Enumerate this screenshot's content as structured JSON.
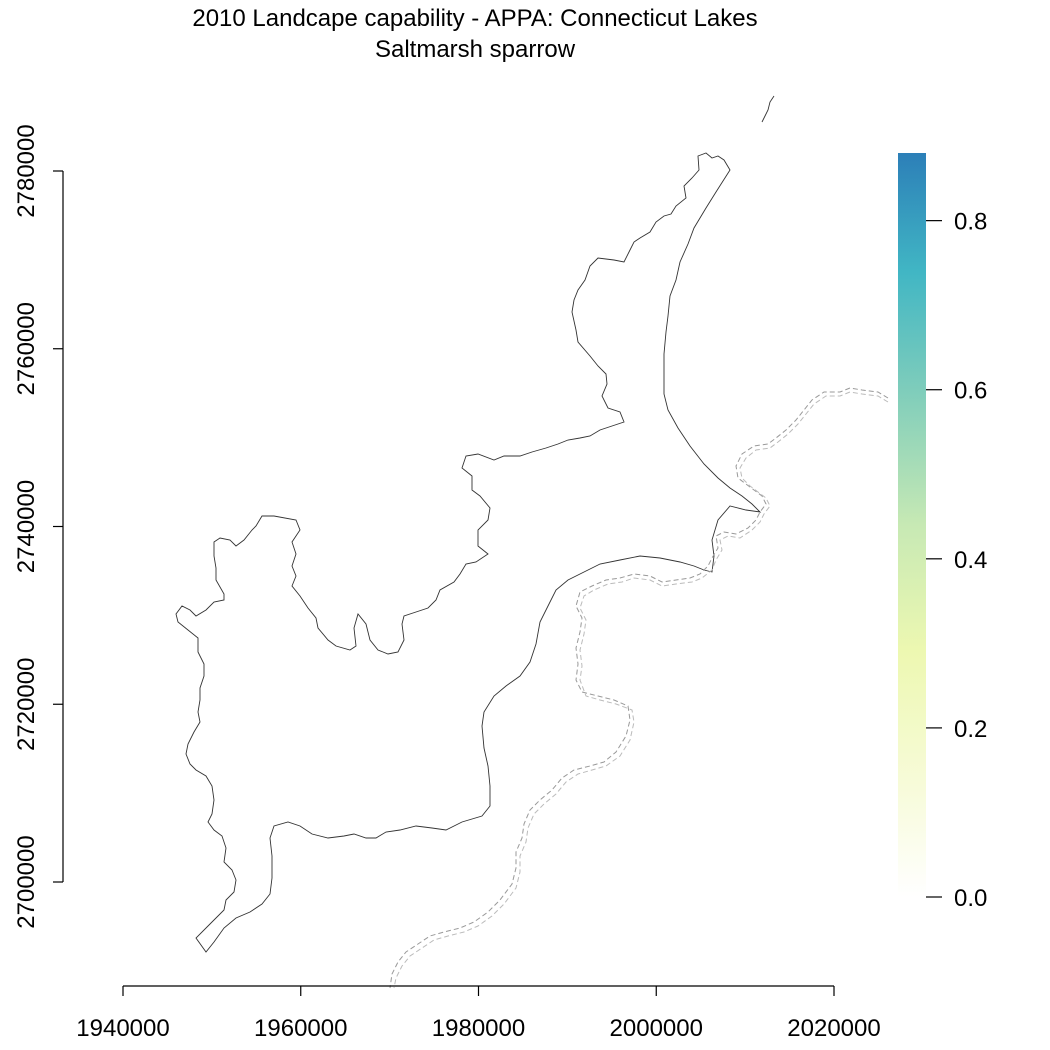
{
  "title": {
    "line1": "2010 Landcape capability - APPA: Connecticut Lakes",
    "line2": "Saltmarsh sparrow"
  },
  "chart_data": {
    "type": "heatmap",
    "title": "2010 Landcape capability - APPA: Connecticut Lakes",
    "subtitle": "Saltmarsh sparrow",
    "xlabel": "",
    "ylabel": "",
    "x_ticks": [
      "1940000",
      "1960000",
      "1980000",
      "2000000",
      "2020000"
    ],
    "y_ticks": [
      "2700000",
      "2720000",
      "2740000",
      "2760000",
      "2780000"
    ],
    "xlim": [
      1940000,
      2020000
    ],
    "ylim": [
      2700000,
      2780000
    ],
    "legend": {
      "type": "colorbar",
      "position": "right",
      "range": [
        0,
        0.88
      ],
      "ticks": [
        "0.0",
        "0.2",
        "0.4",
        "0.6",
        "0.8"
      ],
      "colors": [
        "#ffffff",
        "#f7fbd9",
        "#edf8b1",
        "#c7e9b4",
        "#7fcdbb",
        "#41b6c4",
        "#2c7fb8"
      ]
    },
    "raster_values": "none visible (study area shows no nonzero capability)",
    "grid": false
  }
}
